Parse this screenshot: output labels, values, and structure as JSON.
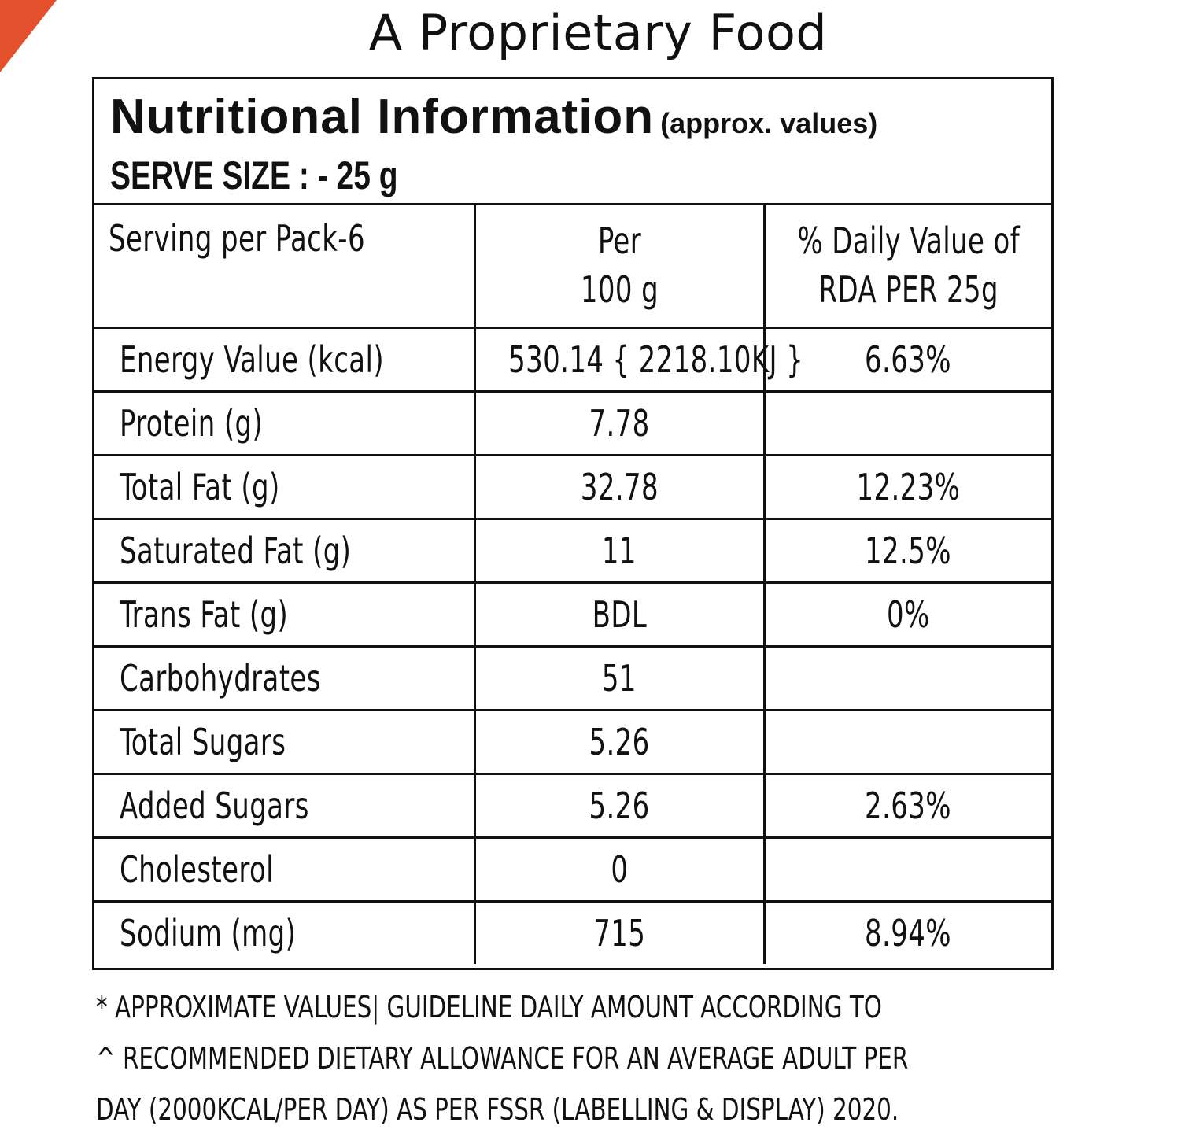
{
  "product_title": "A Proprietary Food",
  "panel": {
    "title": "Nutritional Information",
    "subtitle": "(approx. values)",
    "serve_size": "SERVE SIZE : - 25 g"
  },
  "table": {
    "header": {
      "col1": "Serving per Pack-6",
      "col2_line1": "Per",
      "col2_line2": "100 g",
      "col3_line1": "% Daily Value of",
      "col3_line2": "RDA PER 25g"
    },
    "rows": [
      {
        "name": "Energy Value (kcal)",
        "per100": "530.14 { 2218.10KJ }",
        "rda": "6.63%"
      },
      {
        "name": "Protein (g)",
        "per100": "7.78",
        "rda": ""
      },
      {
        "name": "Total Fat (g)",
        "per100": "32.78",
        "rda": "12.23%"
      },
      {
        "name": "Saturated Fat (g)",
        "per100": "11",
        "rda": "12.5%"
      },
      {
        "name": "Trans Fat (g)",
        "per100": "BDL",
        "rda": "0%"
      },
      {
        "name": "Carbohydrates",
        "per100": "51",
        "rda": ""
      },
      {
        "name": "Total Sugars",
        "per100": "5.26",
        "rda": ""
      },
      {
        "name": "Added Sugars",
        "per100": "5.26",
        "rda": "2.63%"
      },
      {
        "name": "Cholesterol",
        "per100": "0",
        "rda": ""
      },
      {
        "name": "Sodium (mg)",
        "per100": "715",
        "rda": "8.94%"
      }
    ]
  },
  "footnote": {
    "line1": "* APPROXIMATE VALUES| GUIDELINE DAILY AMOUNT ACCORDING TO",
    "line2": "^ RECOMMENDED DIETARY ALLOWANCE FOR AN AVERAGE ADULT PER",
    "line3": "DAY (2000KCAL/PER DAY) AS PER FSSR (LABELLING & DISPLAY) 2020."
  },
  "colors": {
    "corner_accent": "#e4502b",
    "text": "#111111",
    "border": "#111111",
    "background": "#ffffff"
  }
}
